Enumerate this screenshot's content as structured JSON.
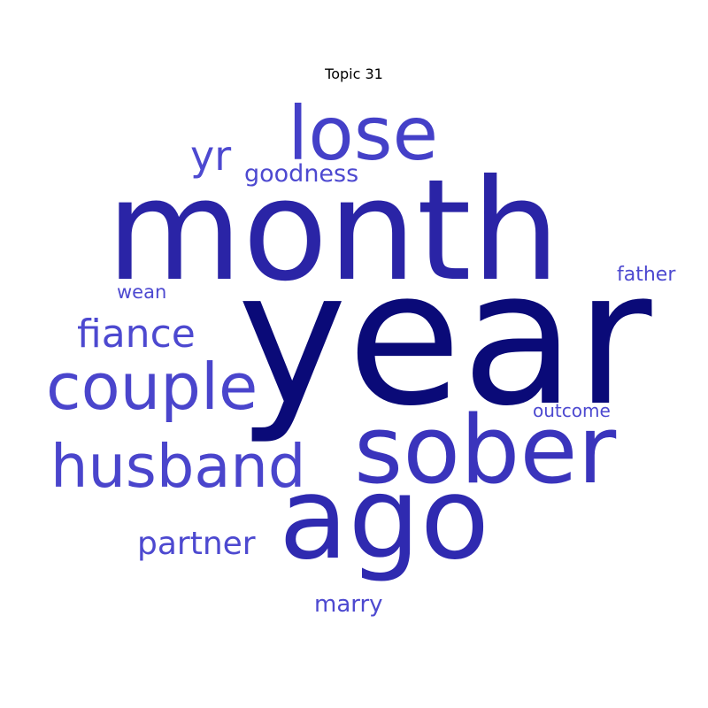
{
  "chart_data": {
    "type": "wordcloud",
    "title": "Topic 31",
    "words": [
      {
        "text": "year",
        "weight": 1.0,
        "color": "#0a0a78"
      },
      {
        "text": "month",
        "weight": 0.86,
        "color": "#2a24a6"
      },
      {
        "text": "ago",
        "weight": 0.73,
        "color": "#2f2ab0"
      },
      {
        "text": "sober",
        "weight": 0.61,
        "color": "#3a34bc"
      },
      {
        "text": "lose",
        "weight": 0.47,
        "color": "#4440c8"
      },
      {
        "text": "couple",
        "weight": 0.42,
        "color": "#4a45cc"
      },
      {
        "text": "husband",
        "weight": 0.4,
        "color": "#4a45cc"
      },
      {
        "text": "fiance",
        "weight": 0.25,
        "color": "#4d49d0"
      },
      {
        "text": "yr",
        "weight": 0.24,
        "color": "#4d49d0"
      },
      {
        "text": "partner",
        "weight": 0.21,
        "color": "#4d49d0"
      },
      {
        "text": "goodness",
        "weight": 0.16,
        "color": "#4d49d0"
      },
      {
        "text": "marry",
        "weight": 0.15,
        "color": "#4d49d0"
      },
      {
        "text": "father",
        "weight": 0.13,
        "color": "#4d49d0"
      },
      {
        "text": "wean",
        "weight": 0.12,
        "color": "#4d49d0"
      },
      {
        "text": "outcome",
        "weight": 0.11,
        "color": "#4d49d0"
      }
    ]
  }
}
